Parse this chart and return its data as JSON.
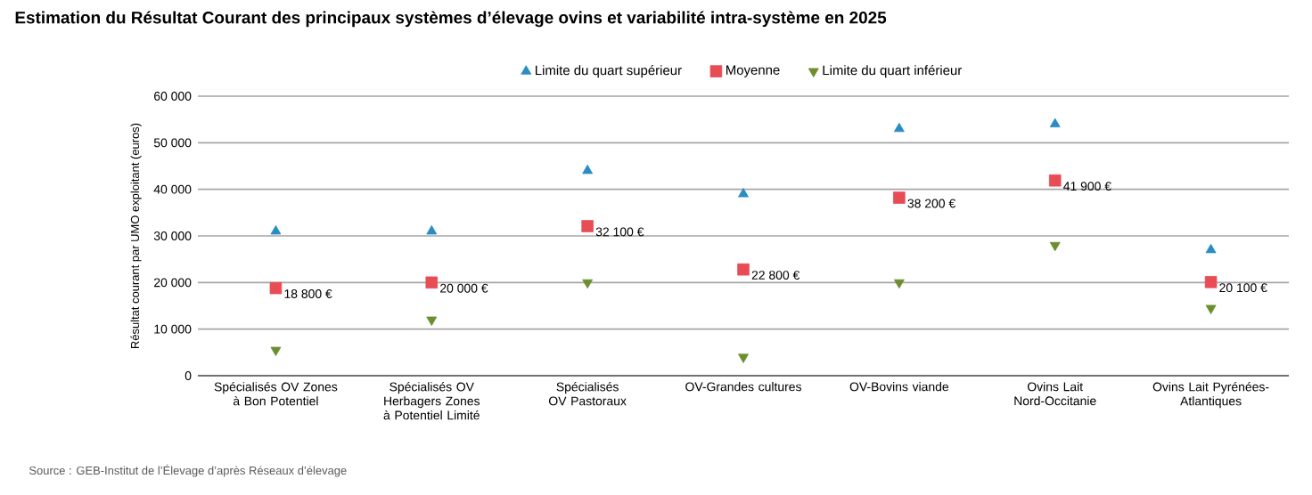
{
  "chart_data": {
    "type": "scatter",
    "title": "Estimation du Résultat Courant des principaux systèmes d’élevage ovins et variabilité intra-système en 2025",
    "ylabel": "Résultat courant par UMO exploitant (euros)",
    "categories": [
      "Spécialisés OV Zones à Bon Potentiel",
      "Spécialisés OV Herbagers Zones à Potentiel Limité",
      "Spécialisés OV Pastoraux",
      "OV-Grandes cultures",
      "OV-Bovins viande",
      "Ovins Lait Nord-Occitanie",
      "Ovins Lait Pyrénées-Atlantiques"
    ],
    "series": [
      {
        "name": "Limite du quart supérieur",
        "color": "#2a8cc4",
        "marker": "triangle",
        "values": [
          31000,
          31000,
          44000,
          39000,
          53000,
          54000,
          27000
        ]
      },
      {
        "name": "Moyenne",
        "color": "#e84c55",
        "marker": "square",
        "values": [
          18800,
          20000,
          32100,
          22800,
          38200,
          41900,
          20100
        ],
        "value_labels": [
          "18 800 €",
          "20 000 €",
          "32 100 €",
          "22 800 €",
          "38 200 €",
          "41 900 €",
          "20 100 €"
        ]
      },
      {
        "name": "Limite du quart inférieur",
        "color": "#6b8e2e",
        "marker": "triangle-down",
        "values": [
          5500,
          12000,
          20000,
          4000,
          20000,
          28000,
          14500
        ]
      }
    ],
    "ylim": [
      0,
      60000
    ],
    "yticks": [
      {
        "value": 0,
        "label": "0"
      },
      {
        "value": 10000,
        "label": "10 000"
      },
      {
        "value": 20000,
        "label": "20 000"
      },
      {
        "value": 30000,
        "label": "30 000"
      },
      {
        "value": 40000,
        "label": "40 000"
      },
      {
        "value": 50000,
        "label": "50 000"
      },
      {
        "value": 60000,
        "label": "60 000"
      }
    ],
    "grid": "y",
    "legend": "top",
    "annotations": [
      "Source : GEB-Institut de l’Élevage d’après Réseaux d’élevage"
    ]
  }
}
